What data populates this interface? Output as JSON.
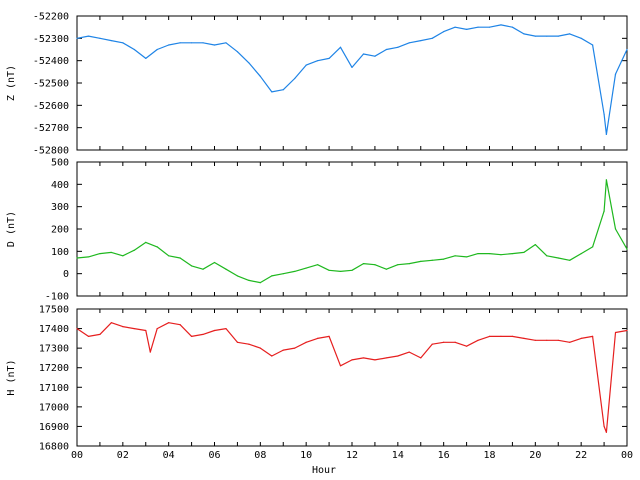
{
  "chart_data": [
    {
      "type": "line",
      "ylabel": "Z (nT)",
      "ylim": [
        -52800,
        -52200
      ],
      "yticks": [
        -52200,
        -52300,
        -52400,
        -52500,
        -52600,
        -52700,
        -52800
      ],
      "xlim": [
        0,
        24
      ],
      "color": "#1f84e6",
      "series": [
        {
          "x": [
            0,
            0.5,
            1,
            1.5,
            2,
            2.5,
            3,
            3.5,
            4,
            4.5,
            5,
            5.5,
            6,
            6.5,
            7,
            7.5,
            8,
            8.5,
            9,
            9.5,
            10,
            10.5,
            11,
            11.5,
            12,
            12.5,
            13,
            13.5,
            14,
            14.5,
            15,
            15.5,
            16,
            16.5,
            17,
            17.5,
            18,
            18.5,
            19,
            19.5,
            20,
            20.5,
            21,
            21.5,
            22,
            22.5,
            23,
            23.1,
            23.5,
            24
          ],
          "values": [
            -52300,
            -52290,
            -52300,
            -52310,
            -52320,
            -52350,
            -52390,
            -52350,
            -52330,
            -52320,
            -52320,
            -52320,
            -52330,
            -52320,
            -52360,
            -52410,
            -52470,
            -52540,
            -52530,
            -52480,
            -52420,
            -52400,
            -52390,
            -52340,
            -52430,
            -52370,
            -52380,
            -52350,
            -52340,
            -52320,
            -52310,
            -52300,
            -52270,
            -52250,
            -52260,
            -52250,
            -52250,
            -52240,
            -52250,
            -52280,
            -52290,
            -52290,
            -52290,
            -52280,
            -52300,
            -52330,
            -52640,
            -52730,
            -52460,
            -52350
          ]
        }
      ]
    },
    {
      "type": "line",
      "ylabel": "D (nT)",
      "ylim": [
        -100,
        500
      ],
      "yticks": [
        500,
        400,
        300,
        200,
        100,
        0,
        -100
      ],
      "xlim": [
        0,
        24
      ],
      "color": "#1fb81f",
      "series": [
        {
          "x": [
            0,
            0.5,
            1,
            1.5,
            2,
            2.5,
            3,
            3.5,
            4,
            4.5,
            5,
            5.5,
            6,
            6.5,
            7,
            7.5,
            8,
            8.5,
            9,
            9.5,
            10,
            10.5,
            11,
            11.5,
            12,
            12.5,
            13,
            13.5,
            14,
            14.5,
            15,
            15.5,
            16,
            16.5,
            17,
            17.5,
            18,
            18.5,
            19,
            19.5,
            20,
            20.5,
            21,
            21.5,
            22,
            22.5,
            23,
            23.1,
            23.5,
            24
          ],
          "values": [
            70,
            75,
            90,
            95,
            80,
            105,
            140,
            120,
            80,
            70,
            35,
            20,
            50,
            20,
            -10,
            -30,
            -40,
            -10,
            0,
            10,
            25,
            40,
            15,
            10,
            15,
            45,
            40,
            20,
            40,
            45,
            55,
            60,
            65,
            80,
            75,
            90,
            90,
            85,
            90,
            95,
            130,
            80,
            70,
            60,
            90,
            120,
            280,
            420,
            200,
            110
          ]
        }
      ]
    },
    {
      "type": "line",
      "ylabel": "H (nT)",
      "xlabel": "Hour",
      "ylim": [
        16800,
        17500
      ],
      "yticks": [
        17500,
        17400,
        17300,
        17200,
        17100,
        17000,
        16900,
        16800
      ],
      "xlim": [
        0,
        24
      ],
      "xticks": [
        "00",
        "02",
        "04",
        "06",
        "08",
        "10",
        "12",
        "14",
        "16",
        "18",
        "20",
        "22",
        "00"
      ],
      "color": "#e61f1f",
      "series": [
        {
          "x": [
            0,
            0.5,
            1,
            1.5,
            2,
            2.5,
            3,
            3.2,
            3.5,
            4,
            4.5,
            5,
            5.5,
            6,
            6.5,
            7,
            7.5,
            8,
            8.5,
            9,
            9.5,
            10,
            10.5,
            11,
            11.5,
            12,
            12.5,
            13,
            13.5,
            14,
            14.5,
            15,
            15.5,
            16,
            16.5,
            17,
            17.5,
            18,
            18.5,
            19,
            19.5,
            20,
            20.5,
            21,
            21.5,
            22,
            22.5,
            23,
            23.1,
            23.5,
            24
          ],
          "values": [
            17400,
            17360,
            17370,
            17430,
            17410,
            17400,
            17390,
            17280,
            17400,
            17430,
            17420,
            17360,
            17370,
            17390,
            17400,
            17330,
            17320,
            17300,
            17260,
            17290,
            17300,
            17330,
            17350,
            17360,
            17210,
            17240,
            17250,
            17240,
            17250,
            17260,
            17280,
            17250,
            17320,
            17330,
            17330,
            17310,
            17340,
            17360,
            17360,
            17360,
            17350,
            17340,
            17340,
            17340,
            17330,
            17350,
            17360,
            16900,
            16870,
            17380,
            17390
          ]
        }
      ]
    }
  ]
}
